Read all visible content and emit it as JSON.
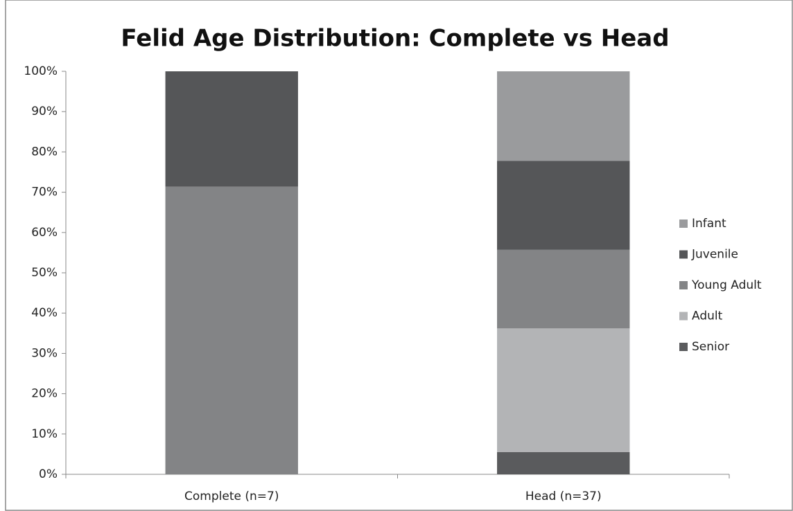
{
  "chart_data": {
    "type": "stacked_bar",
    "title": "Felid Age Distribution: Complete vs Head",
    "categories": [
      "Complete (n=7)",
      "Head (n=37)"
    ],
    "series": [
      {
        "name": "Senior",
        "color": "#5a5b5d",
        "values": [
          0,
          5.5
        ]
      },
      {
        "name": "Adult",
        "color": "#b3b4b6",
        "values": [
          0,
          30.7
        ]
      },
      {
        "name": "Young Adult",
        "color": "#838486",
        "values": [
          71.4,
          19.5
        ]
      },
      {
        "name": "Juvenile",
        "color": "#555658",
        "values": [
          28.6,
          22.1
        ]
      },
      {
        "name": "Infant",
        "color": "#9a9b9d",
        "values": [
          0,
          22.2
        ]
      }
    ],
    "ylim": [
      0,
      100
    ],
    "yticks": [
      {
        "value": 0,
        "label": "0%"
      },
      {
        "value": 10,
        "label": "10%"
      },
      {
        "value": 20,
        "label": "20%"
      },
      {
        "value": 30,
        "label": "30%"
      },
      {
        "value": 40,
        "label": "40%"
      },
      {
        "value": 50,
        "label": "50%"
      },
      {
        "value": 60,
        "label": "60%"
      },
      {
        "value": 70,
        "label": "70%"
      },
      {
        "value": 80,
        "label": "80%"
      },
      {
        "value": 90,
        "label": "90%"
      },
      {
        "value": 100,
        "label": "100%"
      }
    ],
    "legend": "right",
    "grid": false
  }
}
